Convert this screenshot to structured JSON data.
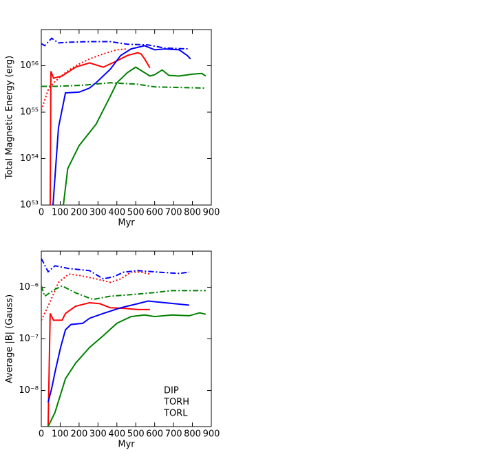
{
  "chart_data": [
    {
      "type": "line",
      "xlabel": "Myr",
      "ylabel": "Total Magnetic Energy (erg)",
      "xlim": [
        0,
        900
      ],
      "xticks": [
        0,
        100,
        200,
        300,
        400,
        500,
        600,
        700,
        800,
        900
      ],
      "ylim": [
        1e+53,
        6e+56
      ],
      "log_y": true,
      "yticks": [
        {
          "value": 1e+53,
          "label": "10⁵³"
        },
        {
          "value": 1e+54,
          "label": "10⁵⁴"
        },
        {
          "value": 1e+55,
          "label": "10⁵⁵"
        },
        {
          "value": 1e+56,
          "label": "10⁵⁶"
        }
      ],
      "series": [
        {
          "color": "#ff0000",
          "style": "solid",
          "x": [
            47,
            51,
            65,
            110,
            182,
            255,
            328,
            400,
            455,
            510,
            528,
            547,
            575
          ],
          "values": [
            1e+53,
            7.6e+55,
            5.4e+55,
            6e+55,
            9.3e+55,
            1.15e+56,
            9.3e+55,
            1.27e+56,
            1.66e+56,
            1.9e+56,
            1.8e+56,
            1.4e+56,
            9e+55
          ]
        },
        {
          "color": "#0000ff",
          "style": "solid",
          "x": [
            62,
            91,
            128,
            200,
            255,
            290,
            365,
            420,
            475,
            547,
            600,
            655,
            730,
            773,
            790
          ],
          "values": [
            1e+53,
            4.7e+54,
            2.6e+55,
            2.7e+55,
            3.3e+55,
            4.3e+55,
            8.4e+55,
            1.66e+56,
            2.3e+56,
            2.7e+56,
            2.2e+56,
            2.3e+56,
            2.2e+56,
            1.66e+56,
            1.4e+56
          ]
        },
        {
          "color": "#008000",
          "style": "solid",
          "x": [
            117,
            140,
            200,
            290,
            365,
            400,
            455,
            500,
            547,
            575,
            600,
            640,
            675,
            730,
            800,
            850,
            870
          ],
          "values": [
            1e+53,
            6.1e+53,
            1.9e+54,
            5.5e+54,
            2.2e+55,
            4.3e+55,
            7.1e+55,
            9.3e+55,
            7.1e+55,
            6e+55,
            6.4e+55,
            8.1e+55,
            6.2e+55,
            6e+55,
            6.6e+55,
            6.8e+55,
            6e+55
          ]
        },
        {
          "color": "#ff0000",
          "style": "dotted",
          "x": [
            0,
            18,
            36,
            73,
            128,
            182,
            255,
            328,
            400,
            455
          ],
          "values": [
            1.1e+55,
            1.8e+55,
            3e+55,
            4.6e+55,
            7.1e+55,
            1e+56,
            1.4e+56,
            1.8e+56,
            2.2e+56,
            2.3e+56
          ]
        },
        {
          "color": "#0000ff",
          "style": "dashdot",
          "x": [
            0,
            18,
            55,
            91,
            146,
            255,
            365,
            455,
            565,
            655,
            783
          ],
          "values": [
            3e+56,
            2.7e+56,
            3.9e+56,
            3.1e+56,
            3.2e+56,
            3.3e+56,
            3.3e+56,
            2.9e+56,
            2.8e+56,
            2.4e+56,
            2.3e+56
          ]
        },
        {
          "color": "#008000",
          "style": "dashdot",
          "x": [
            0,
            73,
            219,
            365,
            510,
            600,
            730,
            870
          ],
          "values": [
            3.6e+55,
            3.6e+55,
            3.8e+55,
            4.3e+55,
            4e+55,
            3.5e+55,
            3.4e+55,
            3.3e+55
          ]
        }
      ]
    },
    {
      "type": "line",
      "xlabel": "Myr",
      "ylabel": "Average |B| (Gauss)",
      "xlim": [
        0,
        900
      ],
      "xticks": [
        0,
        100,
        200,
        300,
        400,
        500,
        600,
        700,
        800,
        900
      ],
      "ylim": [
        2e-09,
        5e-06
      ],
      "log_y": true,
      "yticks": [
        {
          "value": 1e-08,
          "label": "10⁻⁸"
        },
        {
          "value": 1e-07,
          "label": "10⁻⁷"
        },
        {
          "value": 1e-06,
          "label": "10⁻⁶"
        }
      ],
      "legend": "lower right",
      "series": [
        {
          "name": "DIP",
          "color": "#ff0000",
          "style": "solid",
          "x": [
            36,
            47,
            65,
            110,
            128,
            182,
            255,
            310,
            365,
            437,
            510,
            575
          ],
          "values": [
            2e-09,
            3.1e-07,
            2.3e-07,
            2.3e-07,
            3.1e-07,
            4.3e-07,
            5e-07,
            4.8e-07,
            4e-07,
            3.9e-07,
            3.7e-07,
            3.7e-07
          ]
        },
        {
          "name": "TORH",
          "color": "#0000ff",
          "style": "solid",
          "x": [
            36,
            55,
            73,
            102,
            128,
            157,
            219,
            255,
            328,
            420,
            510,
            565,
            655,
            783
          ],
          "values": [
            5.9e-09,
            1.1e-08,
            2.3e-08,
            6.8e-08,
            1.5e-07,
            1.9e-07,
            2e-07,
            2.5e-07,
            3.1e-07,
            4e-07,
            4.8e-07,
            5.4e-07,
            5e-07,
            4.5e-07
          ]
        },
        {
          "name": "TORL",
          "color": "#008000",
          "style": "solid",
          "x": [
            36,
            73,
            128,
            182,
            255,
            328,
            400,
            475,
            547,
            600,
            692,
            783,
            838,
            870
          ],
          "values": [
            2e-09,
            3.8e-09,
            1.7e-08,
            3.4e-08,
            6.8e-08,
            1.15e-07,
            2e-07,
            2.7e-07,
            2.9e-07,
            2.7e-07,
            2.9e-07,
            2.8e-07,
            3.2e-07,
            3e-07
          ]
        },
        {
          "color": "#ff0000",
          "style": "dotted",
          "x": [
            0,
            36,
            91,
            146,
            200,
            290,
            365,
            420,
            475,
            528,
            575
          ],
          "values": [
            2.3e-07,
            4.3e-07,
            1.24e-06,
            1.8e-06,
            1.7e-06,
            1.45e-06,
            1.24e-06,
            1.45e-06,
            1.96e-06,
            1.96e-06,
            1.8e-06
          ]
        },
        {
          "color": "#0000ff",
          "style": "dashdot",
          "x": [
            0,
            36,
            73,
            146,
            255,
            328,
            383,
            437,
            510,
            619,
            730,
            783
          ],
          "values": [
            3.6e-06,
            2e-06,
            2.6e-06,
            2.3e-06,
            2.1e-06,
            1.45e-06,
            1.6e-06,
            1.96e-06,
            2.1e-06,
            1.96e-06,
            1.85e-06,
            1.96e-06
          ]
        },
        {
          "color": "#008000",
          "style": "dashdot",
          "x": [
            0,
            18,
            73,
            110,
            182,
            273,
            365,
            475,
            583,
            692,
            870
          ],
          "values": [
            1.06e-06,
            6.7e-07,
            9.1e-07,
            1.06e-06,
            7.8e-07,
            5.8e-07,
            6.7e-07,
            7.2e-07,
            7.8e-07,
            8.6e-07,
            8.6e-07
          ]
        }
      ]
    }
  ]
}
